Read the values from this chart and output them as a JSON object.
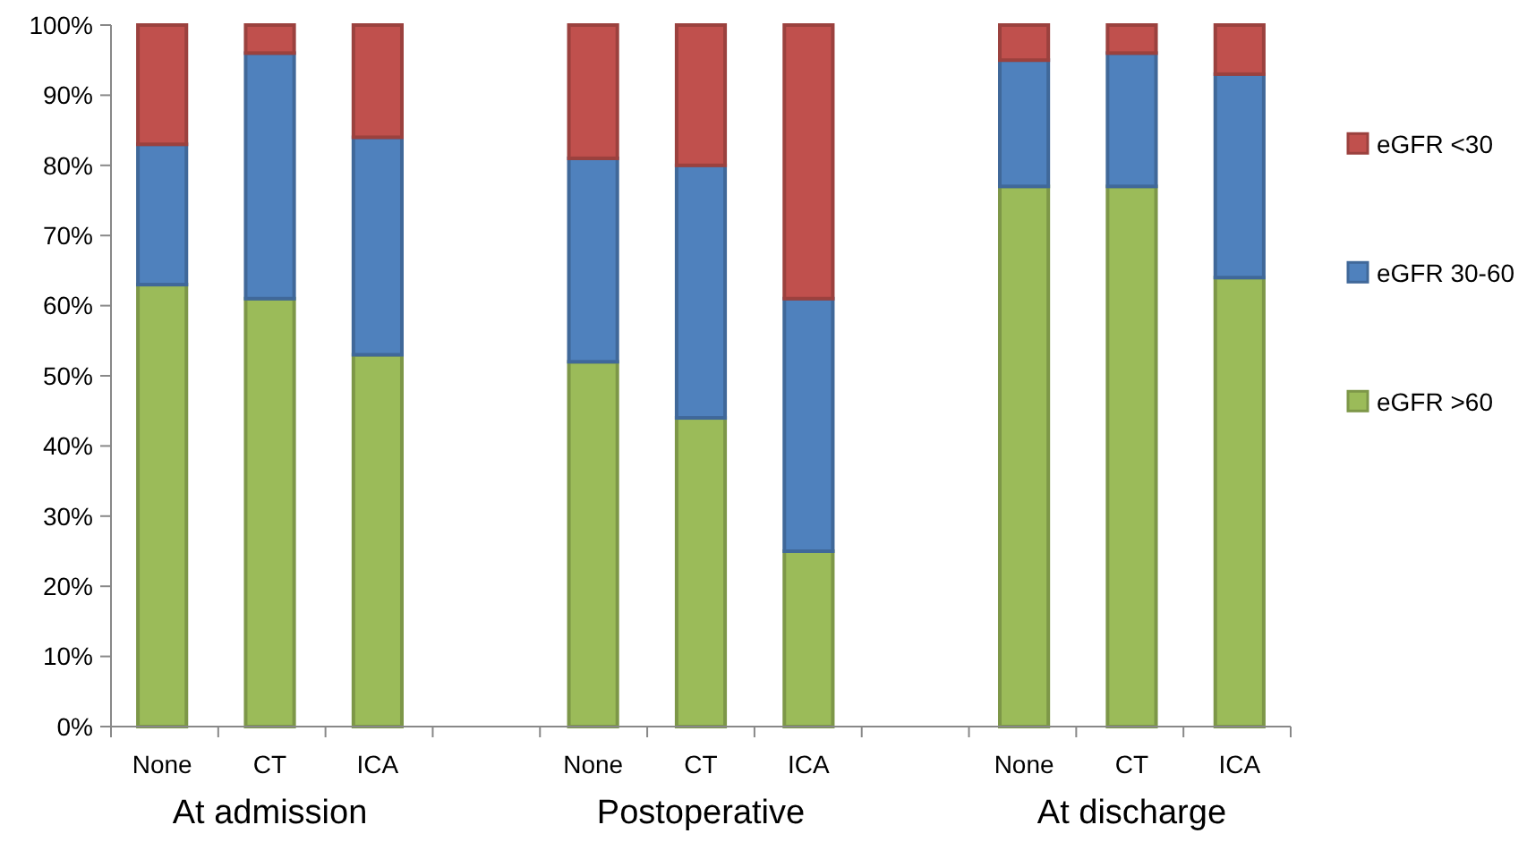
{
  "chart_data": {
    "type": "bar",
    "stacked": true,
    "categories": [
      "None",
      "CT",
      "ICA",
      null,
      "None",
      "CT",
      "ICA",
      null,
      "None",
      "CT",
      "ICA"
    ],
    "series": [
      {
        "name": "eGFR >60",
        "color": "#9bbb59",
        "values": [
          63,
          61,
          53,
          null,
          52,
          44,
          25,
          null,
          77,
          77,
          64
        ]
      },
      {
        "name": "eGFR 30-60",
        "color": "#4f81bd",
        "values": [
          20,
          35,
          31,
          null,
          29,
          36,
          36,
          null,
          18,
          19,
          29
        ]
      },
      {
        "name": "eGFR <30",
        "color": "#c0504d",
        "values": [
          17,
          4,
          16,
          null,
          19,
          20,
          39,
          null,
          5,
          4,
          7
        ]
      }
    ],
    "ylim": [
      0,
      100
    ],
    "yticks": [
      {
        "value": 0,
        "label": "0%"
      },
      {
        "value": 10,
        "label": "10%"
      },
      {
        "value": 20,
        "label": "20%"
      },
      {
        "value": 30,
        "label": "30%"
      },
      {
        "value": 40,
        "label": "40%"
      },
      {
        "value": 50,
        "label": "50%"
      },
      {
        "value": 60,
        "label": "60%"
      },
      {
        "value": 70,
        "label": "70%"
      },
      {
        "value": 80,
        "label": "80%"
      },
      {
        "value": 90,
        "label": "90%"
      },
      {
        "value": 100,
        "label": "100%"
      }
    ],
    "legend": "right",
    "annotations": [
      "At admission",
      "Postoperative",
      "At discharge"
    ]
  }
}
